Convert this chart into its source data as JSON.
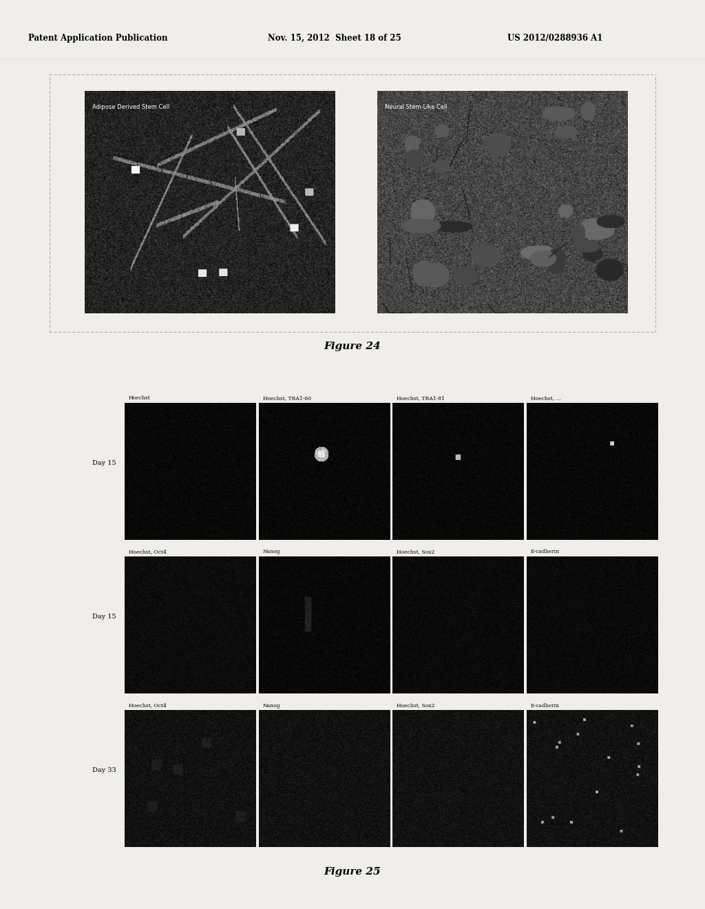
{
  "page_title_left": "Patent Application Publication",
  "page_title_mid": "Nov. 15, 2012  Sheet 18 of 25",
  "page_title_right": "US 2012/0288936 A1",
  "figure24_caption": "Figure 24",
  "figure25_caption": "Figure 25",
  "fig24_label_left": "Adipose Derived Stem Cell",
  "fig24_label_right": "Neural Stem-Like Cell",
  "fig25_row_labels": [
    "Day 15",
    "Day 15",
    "Day 33"
  ],
  "fig25_col_labels_row1": [
    "Hoechst",
    "Hoechst, TRA1-60",
    "Hoechst, TRA1-81",
    "Hoechst, ..."
  ],
  "fig25_col_labels_row2": [
    "Hoechst, Oct4",
    "Nanog",
    "Hoechst, Sox2",
    "E-cadherin"
  ],
  "fig25_col_labels_row3": [
    "Hoechst, Oct4",
    "Nanog",
    "Hoechst, Sox2",
    "E-cadherin"
  ],
  "page_bg": "#f0eeeb",
  "title_fontsize": 8.5,
  "caption_fontsize": 10,
  "label_fontsize": 6.5
}
